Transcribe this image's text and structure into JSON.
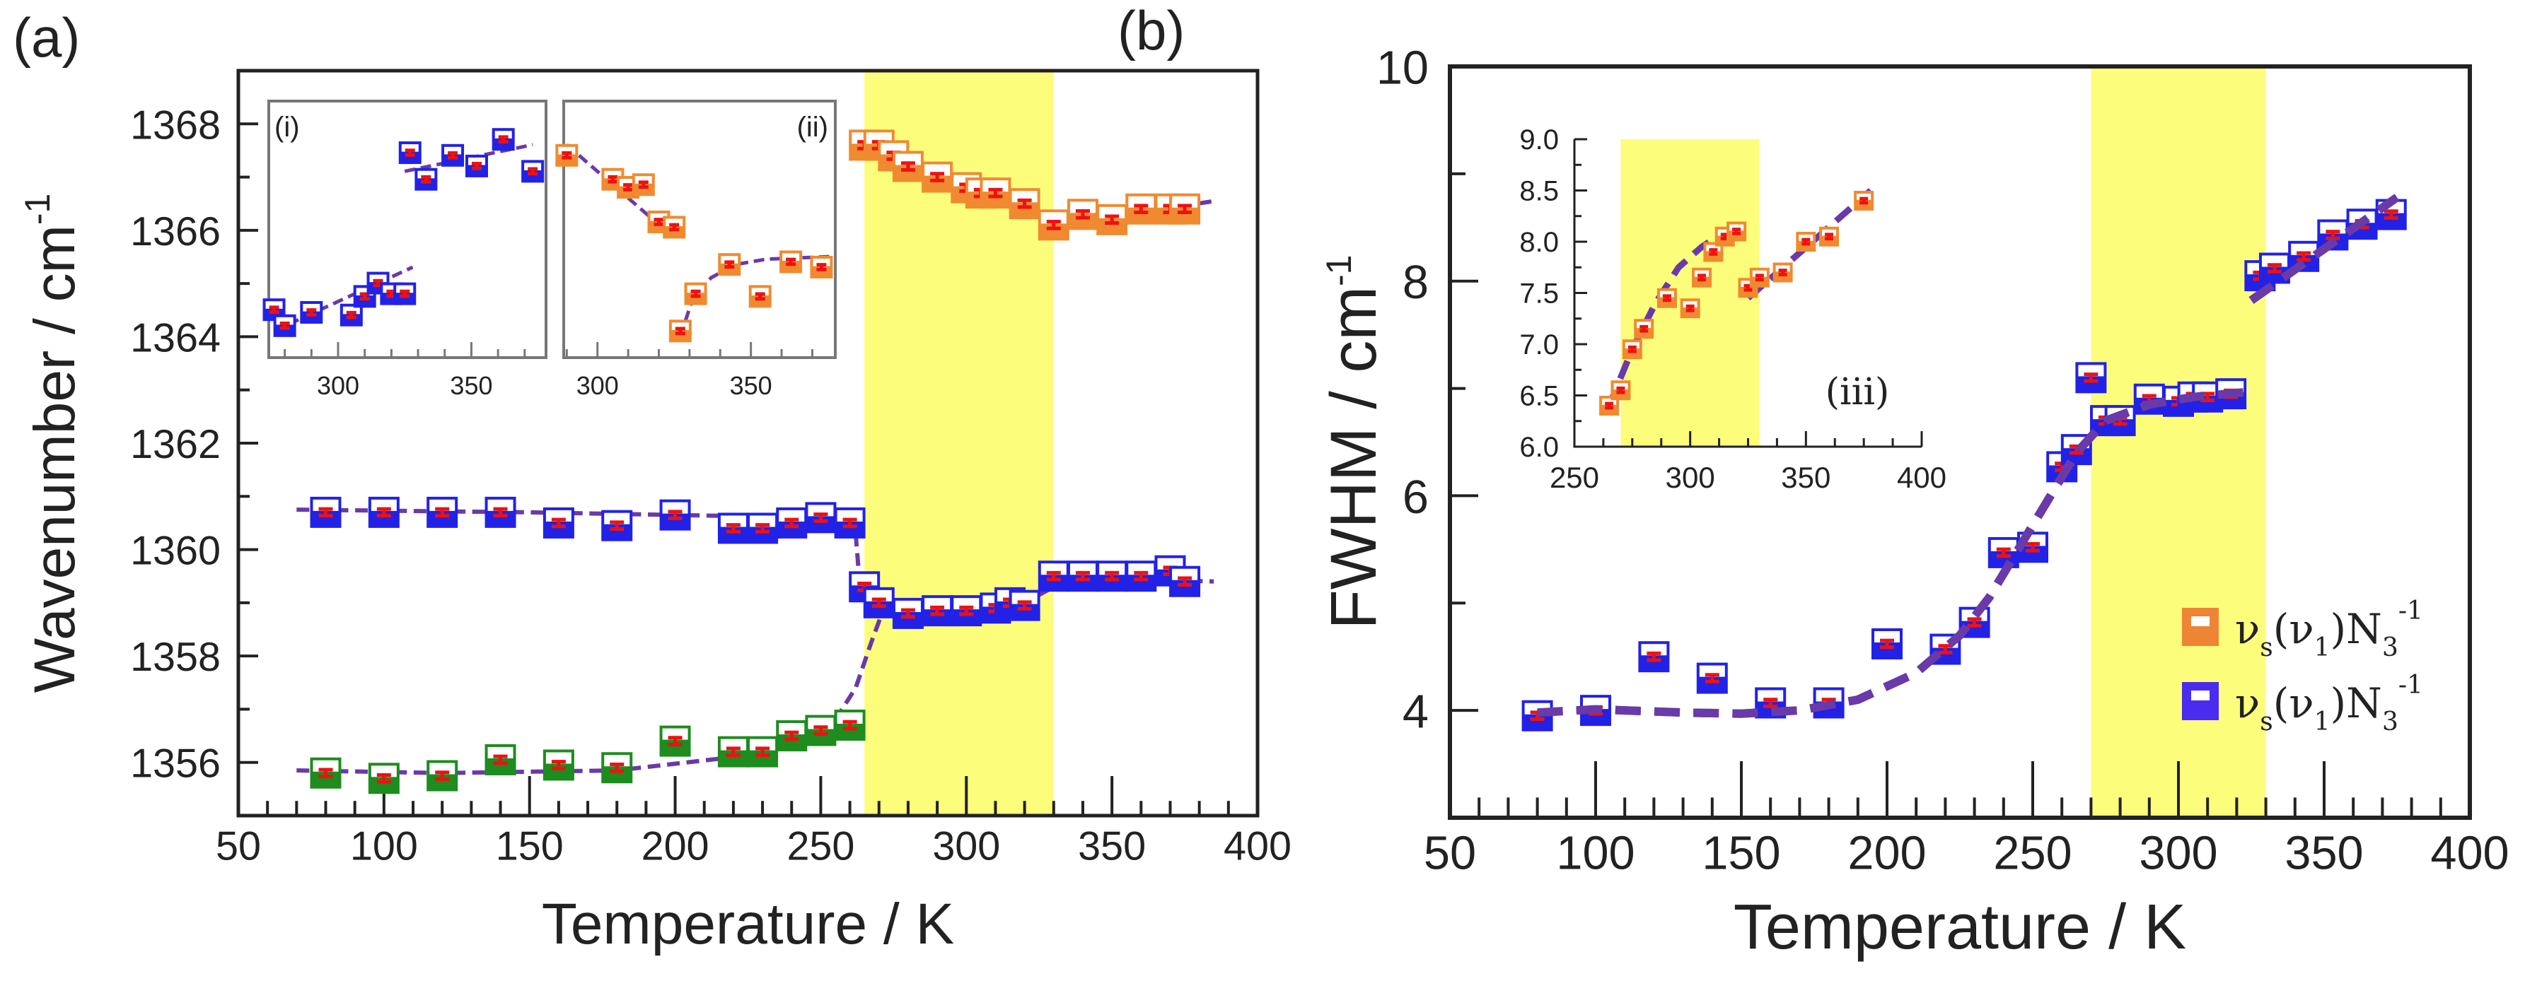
{
  "colors": {
    "blue": "#2222e6",
    "orange": "#f08a30",
    "green": "#1e8c1e",
    "red": "#ee1111",
    "fit": "#6a3aa8",
    "highlight": "#fdfd7c",
    "legend_blue": "#4a2cf0",
    "legend_orange": "#ee8436"
  },
  "chart_data": [
    {
      "id": "a",
      "type": "scatter",
      "panel_label": "(a)",
      "xlabel": "Temperature / K",
      "ylabel": {
        "text": "Wavenumber / cm",
        "sup": "-1"
      },
      "xlim": [
        50,
        400
      ],
      "ylim": [
        1355,
        1369
      ],
      "xticks": [
        50,
        100,
        150,
        200,
        250,
        300,
        350,
        400
      ],
      "yticks": [
        1356,
        1358,
        1360,
        1362,
        1364,
        1366,
        1368
      ],
      "highlight_x": [
        265,
        330
      ],
      "series": [
        {
          "name": "upper-low-T",
          "color": "blue",
          "x": [
            80,
            100,
            120,
            140,
            160,
            180,
            200,
            220,
            230,
            240,
            250,
            260
          ],
          "y": [
            1360.7,
            1360.7,
            1360.7,
            1360.7,
            1360.5,
            1360.45,
            1360.65,
            1360.4,
            1360.4,
            1360.5,
            1360.6,
            1360.5
          ]
        },
        {
          "name": "upper-high-T",
          "color": "blue",
          "x": [
            265,
            270,
            280,
            290,
            300,
            310,
            315,
            320,
            330,
            340,
            350,
            360,
            370,
            375
          ],
          "y": [
            1359.3,
            1359.0,
            1358.8,
            1358.85,
            1358.85,
            1358.9,
            1359.0,
            1358.95,
            1359.5,
            1359.5,
            1359.5,
            1359.5,
            1359.6,
            1359.4
          ]
        },
        {
          "name": "lower",
          "color": "green",
          "x": [
            80,
            100,
            120,
            140,
            160,
            180,
            200,
            220,
            230,
            240,
            250,
            260
          ],
          "y": [
            1355.8,
            1355.7,
            1355.75,
            1356.05,
            1355.95,
            1355.9,
            1356.4,
            1356.2,
            1356.2,
            1356.5,
            1356.6,
            1356.7
          ]
        },
        {
          "name": "high-band",
          "color": "orange",
          "x": [
            265,
            270,
            275,
            280,
            290,
            300,
            305,
            310,
            320,
            330,
            340,
            350,
            360,
            370,
            375
          ],
          "y": [
            1367.6,
            1367.6,
            1367.4,
            1367.2,
            1367.0,
            1366.8,
            1366.7,
            1366.7,
            1366.5,
            1366.1,
            1366.3,
            1366.2,
            1366.4,
            1366.4,
            1366.4
          ]
        }
      ],
      "fits": [
        {
          "x": [
            70,
            150,
            250,
            260,
            262,
            263,
            265,
            270,
            280,
            300,
            320,
            330,
            350,
            385
          ],
          "y": [
            1360.75,
            1360.7,
            1360.6,
            1360.5,
            1360.3,
            1359.6,
            1359.3,
            1359.1,
            1358.9,
            1358.85,
            1359.0,
            1359.3,
            1359.45,
            1359.4
          ]
        },
        {
          "x": [
            70,
            120,
            180,
            220,
            240,
            255,
            262,
            267,
            271
          ],
          "y": [
            1355.85,
            1355.8,
            1355.85,
            1356.1,
            1356.4,
            1356.8,
            1357.4,
            1358.2,
            1358.8
          ]
        },
        {
          "x": [
            265,
            280,
            300,
            320,
            330,
            350,
            385
          ],
          "y": [
            1367.55,
            1367.25,
            1366.85,
            1366.4,
            1366.1,
            1366.25,
            1366.55
          ]
        }
      ],
      "insets": [
        {
          "id": "i",
          "label": "(i)",
          "xlim": [
            274,
            378
          ],
          "ylim": [
            1363.6,
            1368.42
          ],
          "xticks": [
            300,
            350
          ],
          "series": [
            {
              "color": "blue",
              "x": [
                276,
                280,
                290,
                305,
                310,
                315,
                320,
                325,
                327,
                333,
                343,
                352,
                362,
                373
              ],
              "y": [
                1364.5,
                1364.2,
                1364.45,
                1364.4,
                1364.75,
                1365.0,
                1364.8,
                1364.8,
                1367.45,
                1366.95,
                1367.4,
                1367.2,
                1367.7,
                1367.1
              ]
            }
          ],
          "fits": [
            {
              "x": [
                276,
                328
              ],
              "y": [
                1364.1,
                1365.3
              ]
            },
            {
              "x": [
                325,
                373
              ],
              "y": [
                1367.1,
                1367.6
              ]
            }
          ]
        },
        {
          "id": "ii",
          "label": "(ii)",
          "xlim": [
            289,
            377.5
          ],
          "ylim": [
            1363.6,
            1368.42
          ],
          "xticks": [
            300,
            350
          ],
          "series": [
            {
              "color": "orange",
              "x": [
                290,
                305,
                310,
                315,
                320,
                325,
                327,
                332,
                343,
                353,
                363,
                373
              ],
              "y": [
                1367.4,
                1366.95,
                1366.8,
                1366.85,
                1366.15,
                1366.05,
                1364.1,
                1364.8,
                1365.35,
                1364.75,
                1365.4,
                1365.3
              ]
            }
          ],
          "fits": [
            {
              "x": [
                290,
                326
              ],
              "y": [
                1367.6,
                1365.8
              ]
            },
            {
              "x": [
                327,
                331,
                337,
                345,
                355,
                377
              ],
              "y": [
                1364.0,
                1364.7,
                1365.1,
                1365.35,
                1365.45,
                1365.5
              ]
            }
          ]
        }
      ]
    },
    {
      "id": "b",
      "type": "scatter",
      "panel_label": "(b)",
      "xlabel": "Temperature / K",
      "ylabel": {
        "text": "FWHM / cm",
        "sup": "-1"
      },
      "xlim": [
        50,
        400
      ],
      "ylim": [
        3,
        10
      ],
      "xticks": [
        50,
        100,
        150,
        200,
        250,
        300,
        350,
        400
      ],
      "yticks": [
        4,
        6,
        8,
        10
      ],
      "highlight_x": [
        270,
        330
      ],
      "series": [
        {
          "name": "blue",
          "color": "blue",
          "x": [
            80,
            100,
            120,
            140,
            160,
            180,
            200,
            220,
            230,
            240,
            250,
            260,
            265,
            270,
            275,
            280,
            290,
            300,
            305,
            310,
            318,
            328,
            333,
            343,
            353,
            363,
            373
          ],
          "y": [
            3.95,
            4.0,
            4.5,
            4.3,
            4.07,
            4.07,
            4.62,
            4.57,
            4.82,
            5.47,
            5.52,
            6.27,
            6.43,
            7.1,
            6.7,
            6.7,
            6.9,
            6.88,
            6.92,
            6.92,
            6.95,
            8.05,
            8.12,
            8.23,
            8.43,
            8.53,
            8.62
          ]
        }
      ],
      "fits": [
        {
          "x": [
            80,
            100,
            130,
            150,
            170,
            190,
            210,
            225,
            235,
            245,
            255,
            265,
            275,
            290,
            305,
            325
          ],
          "y": [
            3.98,
            4.01,
            3.98,
            3.97,
            4.0,
            4.1,
            4.35,
            4.7,
            5.05,
            5.5,
            5.95,
            6.4,
            6.7,
            6.85,
            6.92,
            6.97
          ]
        },
        {
          "x": [
            325,
            375
          ],
          "y": [
            7.82,
            8.78
          ]
        }
      ],
      "legend": [
        {
          "color": "legend_orange",
          "nu": "ν",
          "sub": "s",
          "mid": "(ν",
          "sub2": "1",
          "end": ")N",
          "sub3": "3",
          "sup": "-1"
        },
        {
          "color": "legend_blue",
          "nu": "ν",
          "sub": "s",
          "mid": "(ν",
          "sub2": "1",
          "end": ")N",
          "sub3": "3",
          "sup": "-1"
        }
      ],
      "insets": [
        {
          "id": "iii",
          "label": "(iii)",
          "xlim": [
            250,
            400
          ],
          "ylim": [
            6,
            9
          ],
          "xticks": [
            250,
            300,
            350,
            400
          ],
          "yticks": [
            6.0,
            6.5,
            7.0,
            7.5,
            8.0,
            8.5,
            9.0
          ],
          "highlight_x": [
            270,
            330
          ],
          "series": [
            {
              "color": "orange",
              "x": [
                265,
                270,
                275,
                280,
                290,
                300,
                305,
                310,
                315,
                320,
                325,
                330,
                340,
                350,
                360,
                375
              ],
              "y": [
                6.4,
                6.55,
                6.95,
                7.15,
                7.45,
                7.35,
                7.65,
                7.9,
                8.05,
                8.1,
                7.55,
                7.65,
                7.7,
                8.0,
                8.05,
                8.4
              ]
            }
          ],
          "fits": [
            {
              "x": [
                265,
                275,
                285,
                295,
                305,
                315,
                322
              ],
              "y": [
                6.4,
                6.95,
                7.4,
                7.75,
                7.95,
                8.1,
                8.2
              ]
            },
            {
              "x": [
                325,
                378
              ],
              "y": [
                7.45,
                8.5
              ]
            }
          ]
        }
      ]
    }
  ]
}
